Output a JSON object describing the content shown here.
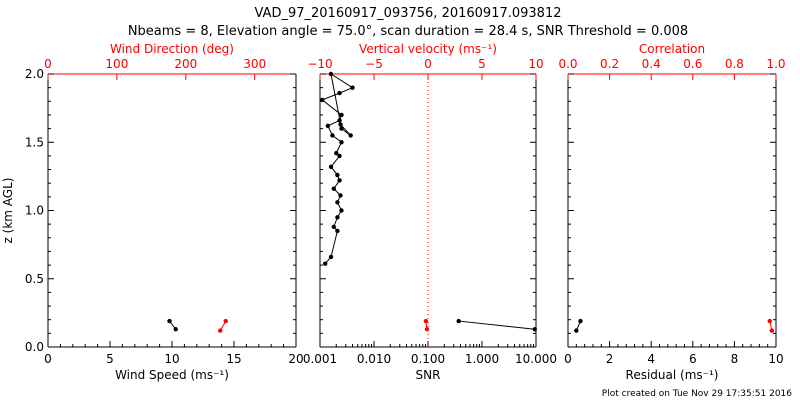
{
  "figure": {
    "title_line1": "VAD_97_20160917_093756, 20160917.093812",
    "title_line2": "Nbeams = 8, Elevation angle = 75.0°, scan duration = 28.4 s, SNR Threshold = 0.008",
    "footer": "Plot created on Tue Nov 29 17:35:51 2016",
    "colors": {
      "axis": "#000000",
      "top_axis": "#ff0000",
      "data_black": "#000000",
      "data_red": "#ff0000"
    }
  },
  "chart_data": [
    {
      "type": "scatter",
      "panel": "wind",
      "ylabel": "z (km AGL)",
      "ylim": [
        0,
        2.0
      ],
      "yticks": [
        "0.0",
        "0.5",
        "1.0",
        "1.5",
        "2.0"
      ],
      "xlabel": "Wind Speed (ms⁻¹)",
      "xlim": [
        0,
        20
      ],
      "xticks": [
        "0",
        "5",
        "10",
        "15",
        "20"
      ],
      "x2label": "Wind Direction (deg)",
      "x2lim": [
        0,
        360
      ],
      "x2ticks": [
        "0",
        "100",
        "200",
        "300"
      ],
      "series": [
        {
          "axis": "bottom",
          "color": "black",
          "mode": "lines+markers",
          "x": [
            9.8,
            10.3
          ],
          "y": [
            0.19,
            0.13
          ]
        },
        {
          "axis": "top",
          "color": "red",
          "mode": "lines+markers",
          "x": [
            258,
            250
          ],
          "y": [
            0.19,
            0.12
          ]
        }
      ]
    },
    {
      "type": "scatter",
      "panel": "snr",
      "xlabel": "SNR",
      "xscale": "log",
      "xlim": [
        0.001,
        10
      ],
      "xticks": [
        "0.001",
        "0.010",
        "0.100",
        "1.000",
        "10.000"
      ],
      "x2label": "Vertical velocity (ms⁻¹)",
      "x2lim": [
        -10,
        10
      ],
      "x2ticks": [
        "−10",
        "−5",
        "0",
        "5",
        "10"
      ],
      "reference_line": {
        "axis": "bottom",
        "value": 0.1,
        "color": "red",
        "style": "dotted"
      },
      "series": [
        {
          "axis": "bottom",
          "color": "black",
          "mode": "lines+markers",
          "x": [
            0.00125,
            0.0016,
            0.0021,
            0.0018,
            0.0021,
            0.0025,
            0.0021,
            0.0024,
            0.0018,
            0.0023,
            0.0021,
            0.0016,
            0.0023,
            0.002,
            0.0025,
            0.0017,
            0.0014,
            0.0023,
            0.0025,
            0.0011,
            0.0023,
            0.004,
            0.0016,
            0.0025,
            0.0037,
            0.0024
          ],
          "y": [
            0.61,
            0.66,
            0.85,
            0.88,
            0.95,
            1.0,
            1.06,
            1.11,
            1.16,
            1.22,
            1.26,
            1.32,
            1.4,
            1.42,
            1.5,
            1.55,
            1.62,
            1.66,
            1.7,
            1.81,
            1.86,
            1.9,
            2.0,
            1.6,
            1.55,
            1.63
          ]
        },
        {
          "axis": "top",
          "color": "red",
          "mode": "lines+markers",
          "x": [
            -0.2,
            -0.1
          ],
          "y": [
            0.19,
            0.13
          ]
        },
        {
          "axis": "bottom",
          "color": "black",
          "mode": "lines+markers",
          "x": [
            0.37,
            9.5
          ],
          "y": [
            0.19,
            0.13
          ]
        }
      ]
    },
    {
      "type": "scatter",
      "panel": "residual",
      "xlabel": "Residual (ms⁻¹)",
      "xlim": [
        0,
        10
      ],
      "xticks": [
        "0",
        "2",
        "4",
        "6",
        "8",
        "10"
      ],
      "x2label": "Correlation",
      "x2lim": [
        0.0,
        1.0
      ],
      "x2ticks": [
        "0.0",
        "0.2",
        "0.4",
        "0.6",
        "0.8",
        "1.0"
      ],
      "series": [
        {
          "axis": "bottom",
          "color": "black",
          "mode": "lines+markers",
          "x": [
            0.6,
            0.4
          ],
          "y": [
            0.19,
            0.12
          ]
        },
        {
          "axis": "top",
          "color": "red",
          "mode": "lines+markers",
          "x": [
            0.97,
            0.98
          ],
          "y": [
            0.19,
            0.12
          ]
        }
      ]
    }
  ]
}
